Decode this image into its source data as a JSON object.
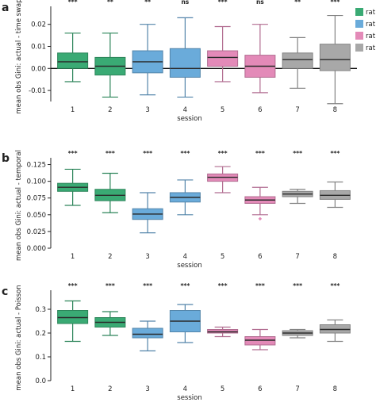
{
  "legend": [
    {
      "label": "rat 1",
      "color": "#3aaa74"
    },
    {
      "label": "rat 2",
      "color": "#6aabda"
    },
    {
      "label": "rat 3",
      "color": "#e38ab8"
    },
    {
      "label": "rat 4",
      "color": "#a8a8a8"
    }
  ],
  "session_rat": [
    0,
    0,
    1,
    1,
    2,
    2,
    3,
    3
  ],
  "chart_data": [
    {
      "panel": "a",
      "type": "box",
      "xlabel": "session",
      "ylabel": "mean obs Gini: actual - time swap",
      "categories": [
        "1",
        "2",
        "3",
        "4",
        "5",
        "6",
        "7",
        "8"
      ],
      "ylim": [
        -0.015,
        0.026
      ],
      "yticks": [
        -0.01,
        0.0,
        0.01,
        0.02
      ],
      "ytick_labels": [
        "-0.01",
        "0.00",
        "0.01",
        "0.02"
      ],
      "zero_line": true,
      "significance": [
        "***",
        "**",
        "**",
        "ns",
        "***",
        "ns",
        "**",
        "***"
      ],
      "boxes": [
        {
          "whislo": -0.006,
          "q1": 0.0,
          "med": 0.003,
          "q3": 0.007,
          "whishi": 0.016,
          "fliers": []
        },
        {
          "whislo": -0.013,
          "q1": -0.003,
          "med": 0.001,
          "q3": 0.005,
          "whishi": 0.016,
          "fliers": []
        },
        {
          "whislo": -0.012,
          "q1": -0.002,
          "med": 0.003,
          "q3": 0.008,
          "whishi": 0.02,
          "fliers": []
        },
        {
          "whislo": -0.013,
          "q1": -0.004,
          "med": 0.0,
          "q3": 0.009,
          "whishi": 0.023,
          "fliers": []
        },
        {
          "whislo": -0.006,
          "q1": 0.001,
          "med": 0.005,
          "q3": 0.008,
          "whishi": 0.019,
          "fliers": []
        },
        {
          "whislo": -0.011,
          "q1": -0.004,
          "med": 0.001,
          "q3": 0.006,
          "whishi": 0.02,
          "fliers": []
        },
        {
          "whislo": -0.009,
          "q1": 0.0,
          "med": 0.004,
          "q3": 0.007,
          "whishi": 0.014,
          "fliers": []
        },
        {
          "whislo": -0.016,
          "q1": -0.001,
          "med": 0.004,
          "q3": 0.011,
          "whishi": 0.024,
          "fliers": []
        }
      ]
    },
    {
      "panel": "b",
      "type": "box",
      "xlabel": "session",
      "ylabel": "mean obs Gini: actual - temporal",
      "categories": [
        "1",
        "2",
        "3",
        "4",
        "5",
        "6",
        "7",
        "8"
      ],
      "ylim": [
        0.0,
        0.128
      ],
      "yticks": [
        0.0,
        0.025,
        0.05,
        0.075,
        0.1,
        0.125
      ],
      "ytick_labels": [
        "0.000",
        "0.025",
        "0.050",
        "0.075",
        "0.100",
        "0.125"
      ],
      "zero_line": false,
      "significance": [
        "***",
        "***",
        "***",
        "***",
        "***",
        "***",
        "***",
        "***"
      ],
      "boxes": [
        {
          "whislo": 0.064,
          "q1": 0.085,
          "med": 0.091,
          "q3": 0.097,
          "whishi": 0.118,
          "fliers": []
        },
        {
          "whislo": 0.053,
          "q1": 0.071,
          "med": 0.079,
          "q3": 0.088,
          "whishi": 0.112,
          "fliers": []
        },
        {
          "whislo": 0.023,
          "q1": 0.043,
          "med": 0.051,
          "q3": 0.059,
          "whishi": 0.083,
          "fliers": []
        },
        {
          "whislo": 0.05,
          "q1": 0.069,
          "med": 0.076,
          "q3": 0.083,
          "whishi": 0.102,
          "fliers": []
        },
        {
          "whislo": 0.083,
          "q1": 0.1,
          "med": 0.106,
          "q3": 0.111,
          "whishi": 0.122,
          "fliers": []
        },
        {
          "whislo": 0.05,
          "q1": 0.067,
          "med": 0.072,
          "q3": 0.077,
          "whishi": 0.091,
          "fliers": [
            0.044
          ]
        },
        {
          "whislo": 0.067,
          "q1": 0.077,
          "med": 0.081,
          "q3": 0.085,
          "whishi": 0.088,
          "fliers": []
        },
        {
          "whislo": 0.061,
          "q1": 0.073,
          "med": 0.079,
          "q3": 0.086,
          "whishi": 0.099,
          "fliers": []
        }
      ]
    },
    {
      "panel": "c",
      "type": "box",
      "xlabel": "session",
      "ylabel": "mean obs Gini: actual - Poisson",
      "categories": [
        "1",
        "2",
        "3",
        "4",
        "5",
        "6",
        "7",
        "8"
      ],
      "ylim": [
        0.0,
        0.36
      ],
      "yticks": [
        0.0,
        0.1,
        0.2,
        0.3
      ],
      "ytick_labels": [
        "0.0",
        "0.1",
        "0.2",
        "0.3"
      ],
      "zero_line": false,
      "significance": [
        "***",
        "***",
        "***",
        "***",
        "***",
        "***",
        "***",
        "***"
      ],
      "boxes": [
        {
          "whislo": 0.165,
          "q1": 0.24,
          "med": 0.265,
          "q3": 0.295,
          "whishi": 0.335,
          "fliers": []
        },
        {
          "whislo": 0.19,
          "q1": 0.225,
          "med": 0.245,
          "q3": 0.265,
          "whishi": 0.29,
          "fliers": []
        },
        {
          "whislo": 0.125,
          "q1": 0.18,
          "med": 0.195,
          "q3": 0.22,
          "whishi": 0.25,
          "fliers": []
        },
        {
          "whislo": 0.16,
          "q1": 0.205,
          "med": 0.25,
          "q3": 0.295,
          "whishi": 0.32,
          "fliers": []
        },
        {
          "whislo": 0.185,
          "q1": 0.2,
          "med": 0.205,
          "q3": 0.215,
          "whishi": 0.225,
          "fliers": []
        },
        {
          "whislo": 0.13,
          "q1": 0.15,
          "med": 0.17,
          "q3": 0.185,
          "whishi": 0.215,
          "fliers": []
        },
        {
          "whislo": 0.18,
          "q1": 0.19,
          "med": 0.2,
          "q3": 0.21,
          "whishi": 0.215,
          "fliers": []
        },
        {
          "whislo": 0.165,
          "q1": 0.2,
          "med": 0.215,
          "q3": 0.235,
          "whishi": 0.255,
          "fliers": []
        }
      ]
    }
  ]
}
